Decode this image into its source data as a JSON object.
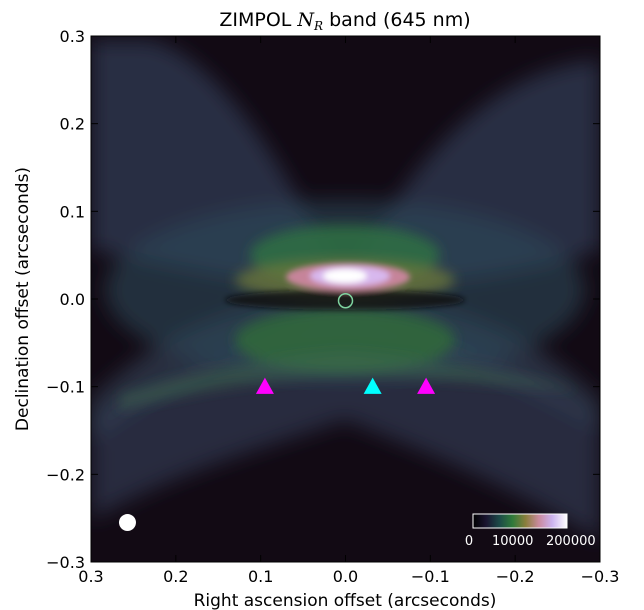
{
  "chart_data": {
    "type": "heatmap",
    "title_prefix": "ZIMPOL ",
    "title_symbol": "N",
    "title_subscript": "R",
    "title_suffix": " band (645 nm)",
    "xlabel": "Right ascension offset (arcseconds)",
    "ylabel": "Declination offset (arcseconds)",
    "xlim": [
      0.3,
      -0.3
    ],
    "ylim": [
      -0.3,
      0.3
    ],
    "x_ticks": [
      0.3,
      0.2,
      0.1,
      0.0,
      -0.1,
      -0.2,
      -0.3
    ],
    "x_tick_labels": [
      "0.3",
      "0.2",
      "0.1",
      "0.0",
      "−0.1",
      "−0.2",
      "−0.3"
    ],
    "y_ticks": [
      0.3,
      0.2,
      0.1,
      0.0,
      -0.1,
      -0.2,
      -0.3
    ],
    "y_tick_labels": [
      "0.3",
      "0.2",
      "0.1",
      "0.0",
      "−0.1",
      "−0.2",
      "−0.3"
    ],
    "colormap": "cubehelix",
    "colorbar": {
      "location": "bottom-right",
      "tick_labels": [
        "0",
        "10000",
        "200000"
      ]
    },
    "markers": [
      {
        "type": "triangle",
        "x": 0.095,
        "y": -0.1,
        "color": "#ff00ff"
      },
      {
        "type": "triangle",
        "x": -0.032,
        "y": -0.1,
        "color": "#00ffff"
      },
      {
        "type": "triangle",
        "x": -0.095,
        "y": -0.1,
        "color": "#ff00ff"
      },
      {
        "type": "open-circle",
        "x": 0.0,
        "y": -0.002,
        "color": "#7fd4a0"
      },
      {
        "type": "filled-circle",
        "x": 0.257,
        "y": -0.255,
        "color": "#ffffff"
      }
    ]
  }
}
